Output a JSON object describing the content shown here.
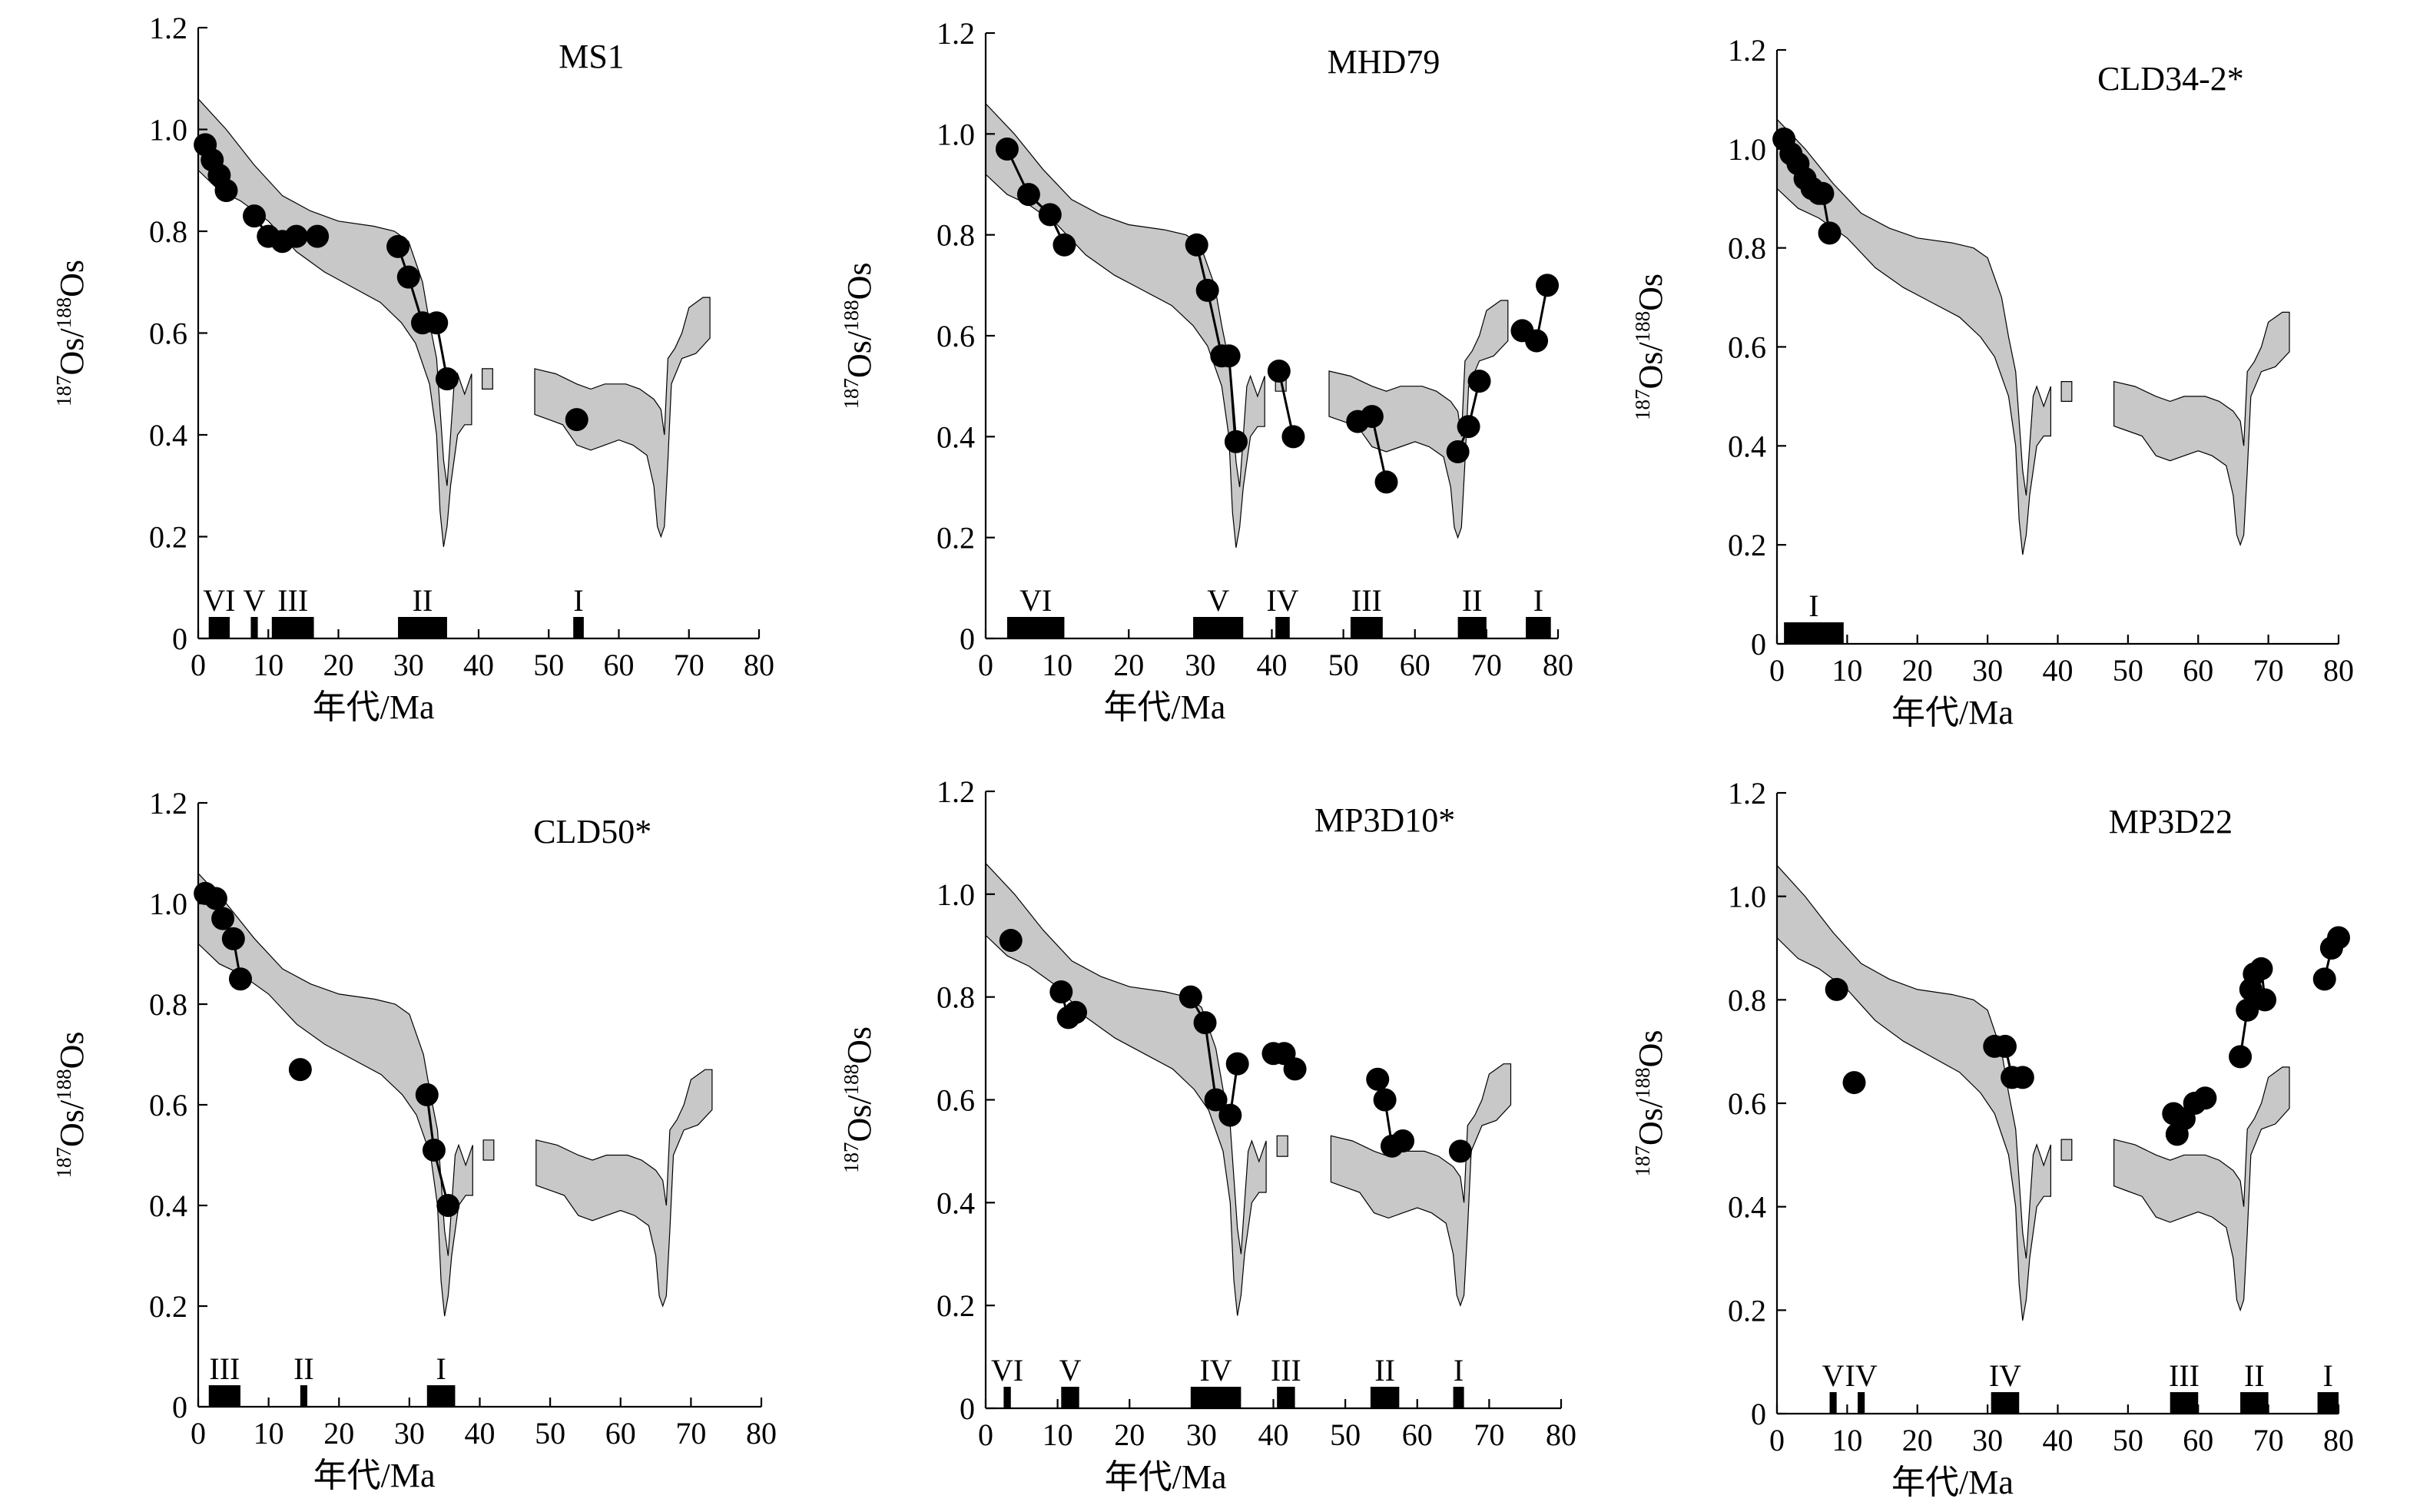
{
  "figure": {
    "xlabel": "年代/Ma",
    "ylabel_parts": {
      "sup1": "187",
      "base1": "Os/",
      "sup2": "188",
      "base2": "Os"
    }
  },
  "colors": {
    "band": "#c8c8c8",
    "points": "#000000",
    "bars": "#000000"
  },
  "reference_band": {
    "description_free": true,
    "segments": [
      {
        "upper": [
          [
            0,
            1.06
          ],
          [
            4,
            1.0
          ],
          [
            8,
            0.93
          ],
          [
            12,
            0.87
          ],
          [
            16,
            0.84
          ],
          [
            20,
            0.82
          ],
          [
            25,
            0.81
          ],
          [
            28,
            0.8
          ],
          [
            30,
            0.78
          ],
          [
            32,
            0.7
          ],
          [
            33,
            0.62
          ],
          [
            34,
            0.55
          ],
          [
            35,
            0.35
          ],
          [
            35.5,
            0.3
          ],
          [
            36,
            0.4
          ],
          [
            36.5,
            0.5
          ],
          [
            37,
            0.52
          ],
          [
            38,
            0.48
          ],
          [
            39,
            0.52
          ]
        ],
        "lower": [
          [
            39,
            0.42
          ],
          [
            38,
            0.42
          ],
          [
            37,
            0.4
          ],
          [
            36,
            0.3
          ],
          [
            35.5,
            0.22
          ],
          [
            35,
            0.18
          ],
          [
            34.5,
            0.25
          ],
          [
            34,
            0.4
          ],
          [
            33,
            0.5
          ],
          [
            31,
            0.58
          ],
          [
            29,
            0.62
          ],
          [
            26,
            0.66
          ],
          [
            22,
            0.69
          ],
          [
            18,
            0.72
          ],
          [
            14,
            0.76
          ],
          [
            10,
            0.82
          ],
          [
            6,
            0.86
          ],
          [
            3,
            0.88
          ],
          [
            0,
            0.92
          ]
        ]
      },
      {
        "upper": [
          [
            40.5,
            0.53
          ],
          [
            42,
            0.53
          ],
          [
            42,
            0.49
          ],
          [
            40.5,
            0.49
          ]
        ],
        "lower": []
      },
      {
        "upper": [
          [
            48,
            0.53
          ],
          [
            51,
            0.52
          ],
          [
            54,
            0.5
          ],
          [
            56,
            0.49
          ],
          [
            58,
            0.5
          ],
          [
            61,
            0.5
          ],
          [
            63,
            0.49
          ],
          [
            65,
            0.47
          ],
          [
            66,
            0.45
          ],
          [
            66.5,
            0.4
          ],
          [
            67,
            0.55
          ],
          [
            68,
            0.57
          ],
          [
            69,
            0.6
          ],
          [
            70,
            0.65
          ],
          [
            72,
            0.67
          ],
          [
            73,
            0.67
          ]
        ],
        "lower": [
          [
            73,
            0.59
          ],
          [
            71,
            0.56
          ],
          [
            69,
            0.55
          ],
          [
            67.5,
            0.5
          ],
          [
            67,
            0.35
          ],
          [
            66.5,
            0.22
          ],
          [
            66,
            0.2
          ],
          [
            65.5,
            0.22
          ],
          [
            65,
            0.3
          ],
          [
            64,
            0.36
          ],
          [
            62,
            0.38
          ],
          [
            60,
            0.39
          ],
          [
            58,
            0.38
          ],
          [
            56,
            0.37
          ],
          [
            54,
            0.38
          ],
          [
            52,
            0.42
          ],
          [
            50,
            0.43
          ],
          [
            48,
            0.44
          ]
        ]
      }
    ]
  },
  "chart_data": [
    {
      "type": "scatter",
      "title": "MS1",
      "xlabel": "年代/Ma",
      "ylabel": "187Os/188Os",
      "xlim": [
        0,
        80
      ],
      "ylim": [
        0,
        1.2
      ],
      "xticks": [
        0,
        10,
        20,
        30,
        40,
        50,
        60,
        70,
        80
      ],
      "yticks": [
        0,
        0.2,
        0.4,
        0.6,
        0.8,
        1.0,
        1.2
      ],
      "series": [
        {
          "connected": true,
          "points": [
            [
              1,
              0.97
            ],
            [
              2,
              0.94
            ],
            [
              3,
              0.91
            ],
            [
              4,
              0.88
            ]
          ]
        },
        {
          "connected": true,
          "points": [
            [
              8,
              0.83
            ],
            [
              10,
              0.79
            ],
            [
              12,
              0.78
            ],
            [
              14,
              0.79
            ],
            [
              17,
              0.79
            ]
          ]
        },
        {
          "connected": true,
          "points": [
            [
              28.5,
              0.77
            ],
            [
              30,
              0.71
            ],
            [
              32,
              0.62
            ],
            [
              34,
              0.62
            ],
            [
              35.5,
              0.51
            ]
          ]
        },
        {
          "connected": false,
          "points": [
            [
              54,
              0.43
            ]
          ]
        }
      ],
      "intervals": [
        {
          "label": "VI",
          "start": 1.5,
          "end": 4.5
        },
        {
          "label": "V",
          "start": 7.5,
          "end": 8.5
        },
        {
          "label": "III",
          "start": 10.5,
          "end": 16.5
        },
        {
          "label": "II",
          "start": 28.5,
          "end": 35.5
        },
        {
          "label": "I",
          "start": 53.5,
          "end": 55
        }
      ]
    },
    {
      "type": "scatter",
      "title": "MHD79",
      "xlabel": "年代/Ma",
      "ylabel": "187Os/188Os",
      "xlim": [
        0,
        80
      ],
      "ylim": [
        0,
        1.2
      ],
      "xticks": [
        0,
        10,
        20,
        30,
        40,
        50,
        60,
        70,
        80
      ],
      "yticks": [
        0,
        0.2,
        0.4,
        0.6,
        0.8,
        1.0,
        1.2
      ],
      "series": [
        {
          "connected": true,
          "points": [
            [
              3,
              0.97
            ],
            [
              6,
              0.88
            ],
            [
              9,
              0.84
            ],
            [
              11,
              0.78
            ]
          ]
        },
        {
          "connected": true,
          "points": [
            [
              29.5,
              0.78
            ],
            [
              31,
              0.69
            ],
            [
              33,
              0.56
            ],
            [
              34,
              0.56
            ],
            [
              35,
              0.39
            ]
          ]
        },
        {
          "connected": true,
          "points": [
            [
              41,
              0.53
            ],
            [
              43,
              0.4
            ]
          ]
        },
        {
          "connected": true,
          "points": [
            [
              52,
              0.43
            ],
            [
              54,
              0.44
            ],
            [
              56,
              0.31
            ]
          ]
        },
        {
          "connected": true,
          "points": [
            [
              66,
              0.37
            ],
            [
              67.5,
              0.42
            ],
            [
              69,
              0.51
            ]
          ]
        },
        {
          "connected": true,
          "points": [
            [
              75,
              0.61
            ],
            [
              77,
              0.59
            ],
            [
              78.5,
              0.7
            ]
          ]
        }
      ],
      "intervals": [
        {
          "label": "VI",
          "start": 3,
          "end": 11
        },
        {
          "label": "V",
          "start": 29,
          "end": 36
        },
        {
          "label": "IV",
          "start": 40.5,
          "end": 42.5
        },
        {
          "label": "III",
          "start": 51,
          "end": 55.5
        },
        {
          "label": "II",
          "start": 66,
          "end": 70
        },
        {
          "label": "I",
          "start": 75.5,
          "end": 79
        }
      ]
    },
    {
      "type": "scatter",
      "title": "CLD34-2*",
      "xlabel": "年代/Ma",
      "ylabel": "187Os/188Os",
      "xlim": [
        0,
        80
      ],
      "ylim": [
        0,
        1.2
      ],
      "xticks": [
        0,
        10,
        20,
        30,
        40,
        50,
        60,
        70,
        80
      ],
      "yticks": [
        0,
        0.2,
        0.4,
        0.6,
        0.8,
        1.0,
        1.2
      ],
      "series": [
        {
          "connected": true,
          "points": [
            [
              1,
              1.02
            ],
            [
              2,
              0.99
            ],
            [
              3,
              0.97
            ],
            [
              4,
              0.94
            ],
            [
              5,
              0.92
            ],
            [
              6,
              0.91
            ]
          ]
        },
        {
          "connected": true,
          "points": [
            [
              6.5,
              0.91
            ],
            [
              7.5,
              0.83
            ]
          ]
        }
      ],
      "intervals": [
        {
          "label": "I",
          "start": 1,
          "end": 9.5
        }
      ]
    },
    {
      "type": "scatter",
      "title": "CLD50*",
      "xlabel": "年代/Ma",
      "ylabel": "187Os/188Os",
      "xlim": [
        0,
        80
      ],
      "ylim": [
        0,
        1.2
      ],
      "xticks": [
        0,
        10,
        20,
        30,
        40,
        50,
        60,
        70,
        80
      ],
      "yticks": [
        0,
        0.2,
        0.4,
        0.6,
        0.8,
        1.0,
        1.2
      ],
      "series": [
        {
          "connected": true,
          "points": [
            [
              1,
              1.02
            ],
            [
              2.5,
              1.01
            ],
            [
              3.5,
              0.97
            ],
            [
              5,
              0.93
            ],
            [
              6,
              0.85
            ]
          ]
        },
        {
          "connected": false,
          "points": [
            [
              14.5,
              0.67
            ]
          ]
        },
        {
          "connected": true,
          "points": [
            [
              32.5,
              0.62
            ],
            [
              33.5,
              0.51
            ],
            [
              35.5,
              0.4
            ]
          ]
        }
      ],
      "intervals": [
        {
          "label": "III",
          "start": 1.5,
          "end": 6
        },
        {
          "label": "II",
          "start": 14.5,
          "end": 15.5
        },
        {
          "label": "I",
          "start": 32.5,
          "end": 36.5
        }
      ]
    },
    {
      "type": "scatter",
      "title": "MP3D10*",
      "xlabel": "年代/Ma",
      "ylabel": "187Os/188Os",
      "xlim": [
        0,
        80
      ],
      "ylim": [
        0,
        1.2
      ],
      "xticks": [
        0,
        10,
        20,
        30,
        40,
        50,
        60,
        70,
        80
      ],
      "yticks": [
        0,
        0.2,
        0.4,
        0.6,
        0.8,
        1.0,
        1.2
      ],
      "series": [
        {
          "connected": false,
          "points": [
            [
              3.5,
              0.91
            ]
          ]
        },
        {
          "connected": true,
          "points": [
            [
              10.5,
              0.81
            ],
            [
              11.5,
              0.76
            ],
            [
              12.5,
              0.77
            ]
          ]
        },
        {
          "connected": true,
          "points": [
            [
              28.5,
              0.8
            ],
            [
              30.5,
              0.75
            ],
            [
              32,
              0.6
            ],
            [
              34,
              0.57
            ],
            [
              35,
              0.67
            ]
          ]
        },
        {
          "connected": true,
          "points": [
            [
              40,
              0.69
            ],
            [
              41.5,
              0.69
            ],
            [
              43,
              0.66
            ]
          ]
        },
        {
          "connected": true,
          "points": [
            [
              54.5,
              0.64
            ],
            [
              55.5,
              0.6
            ],
            [
              56.5,
              0.51
            ],
            [
              58,
              0.52
            ]
          ]
        },
        {
          "connected": false,
          "points": [
            [
              66,
              0.5
            ]
          ]
        }
      ],
      "intervals": [
        {
          "label": "VI",
          "start": 2.5,
          "end": 3.5
        },
        {
          "label": "V",
          "start": 10.5,
          "end": 13
        },
        {
          "label": "IV",
          "start": 28.5,
          "end": 35.5
        },
        {
          "label": "III",
          "start": 40.5,
          "end": 43
        },
        {
          "label": "II",
          "start": 53.5,
          "end": 57.5
        },
        {
          "label": "I",
          "start": 65,
          "end": 66.5
        }
      ]
    },
    {
      "type": "scatter",
      "title": "MP3D22",
      "xlabel": "年代/Ma",
      "ylabel": "187Os/188Os",
      "xlim": [
        0,
        80
      ],
      "ylim": [
        0,
        1.2
      ],
      "xticks": [
        0,
        10,
        20,
        30,
        40,
        50,
        60,
        70,
        80
      ],
      "yticks": [
        0,
        0.2,
        0.4,
        0.6,
        0.8,
        1.0,
        1.2
      ],
      "series": [
        {
          "connected": false,
          "points": [
            [
              8.5,
              0.82
            ]
          ]
        },
        {
          "connected": false,
          "points": [
            [
              11,
              0.64
            ]
          ]
        },
        {
          "connected": true,
          "points": [
            [
              31,
              0.71
            ],
            [
              32.5,
              0.71
            ],
            [
              33.5,
              0.65
            ],
            [
              35,
              0.65
            ]
          ]
        },
        {
          "connected": true,
          "points": [
            [
              56.5,
              0.58
            ],
            [
              57,
              0.54
            ],
            [
              58,
              0.57
            ],
            [
              59.5,
              0.6
            ],
            [
              61,
              0.61
            ]
          ]
        },
        {
          "connected": true,
          "points": [
            [
              66,
              0.69
            ],
            [
              67,
              0.78
            ],
            [
              67.5,
              0.82
            ],
            [
              68,
              0.85
            ],
            [
              69,
              0.86
            ],
            [
              69.5,
              0.8
            ]
          ]
        },
        {
          "connected": true,
          "points": [
            [
              78,
              0.84
            ],
            [
              79,
              0.9
            ],
            [
              80,
              0.92
            ]
          ]
        }
      ],
      "intervals": [
        {
          "label": "V",
          "start": 7.5,
          "end": 8.5
        },
        {
          "label": "IV",
          "start": 11.5,
          "end": 12.5
        },
        {
          "label": "IV",
          "start": 30.5,
          "end": 34.5
        },
        {
          "label": "III",
          "start": 56,
          "end": 60
        },
        {
          "label": "II",
          "start": 66,
          "end": 70
        },
        {
          "label": "I",
          "start": 77,
          "end": 80
        }
      ]
    }
  ]
}
